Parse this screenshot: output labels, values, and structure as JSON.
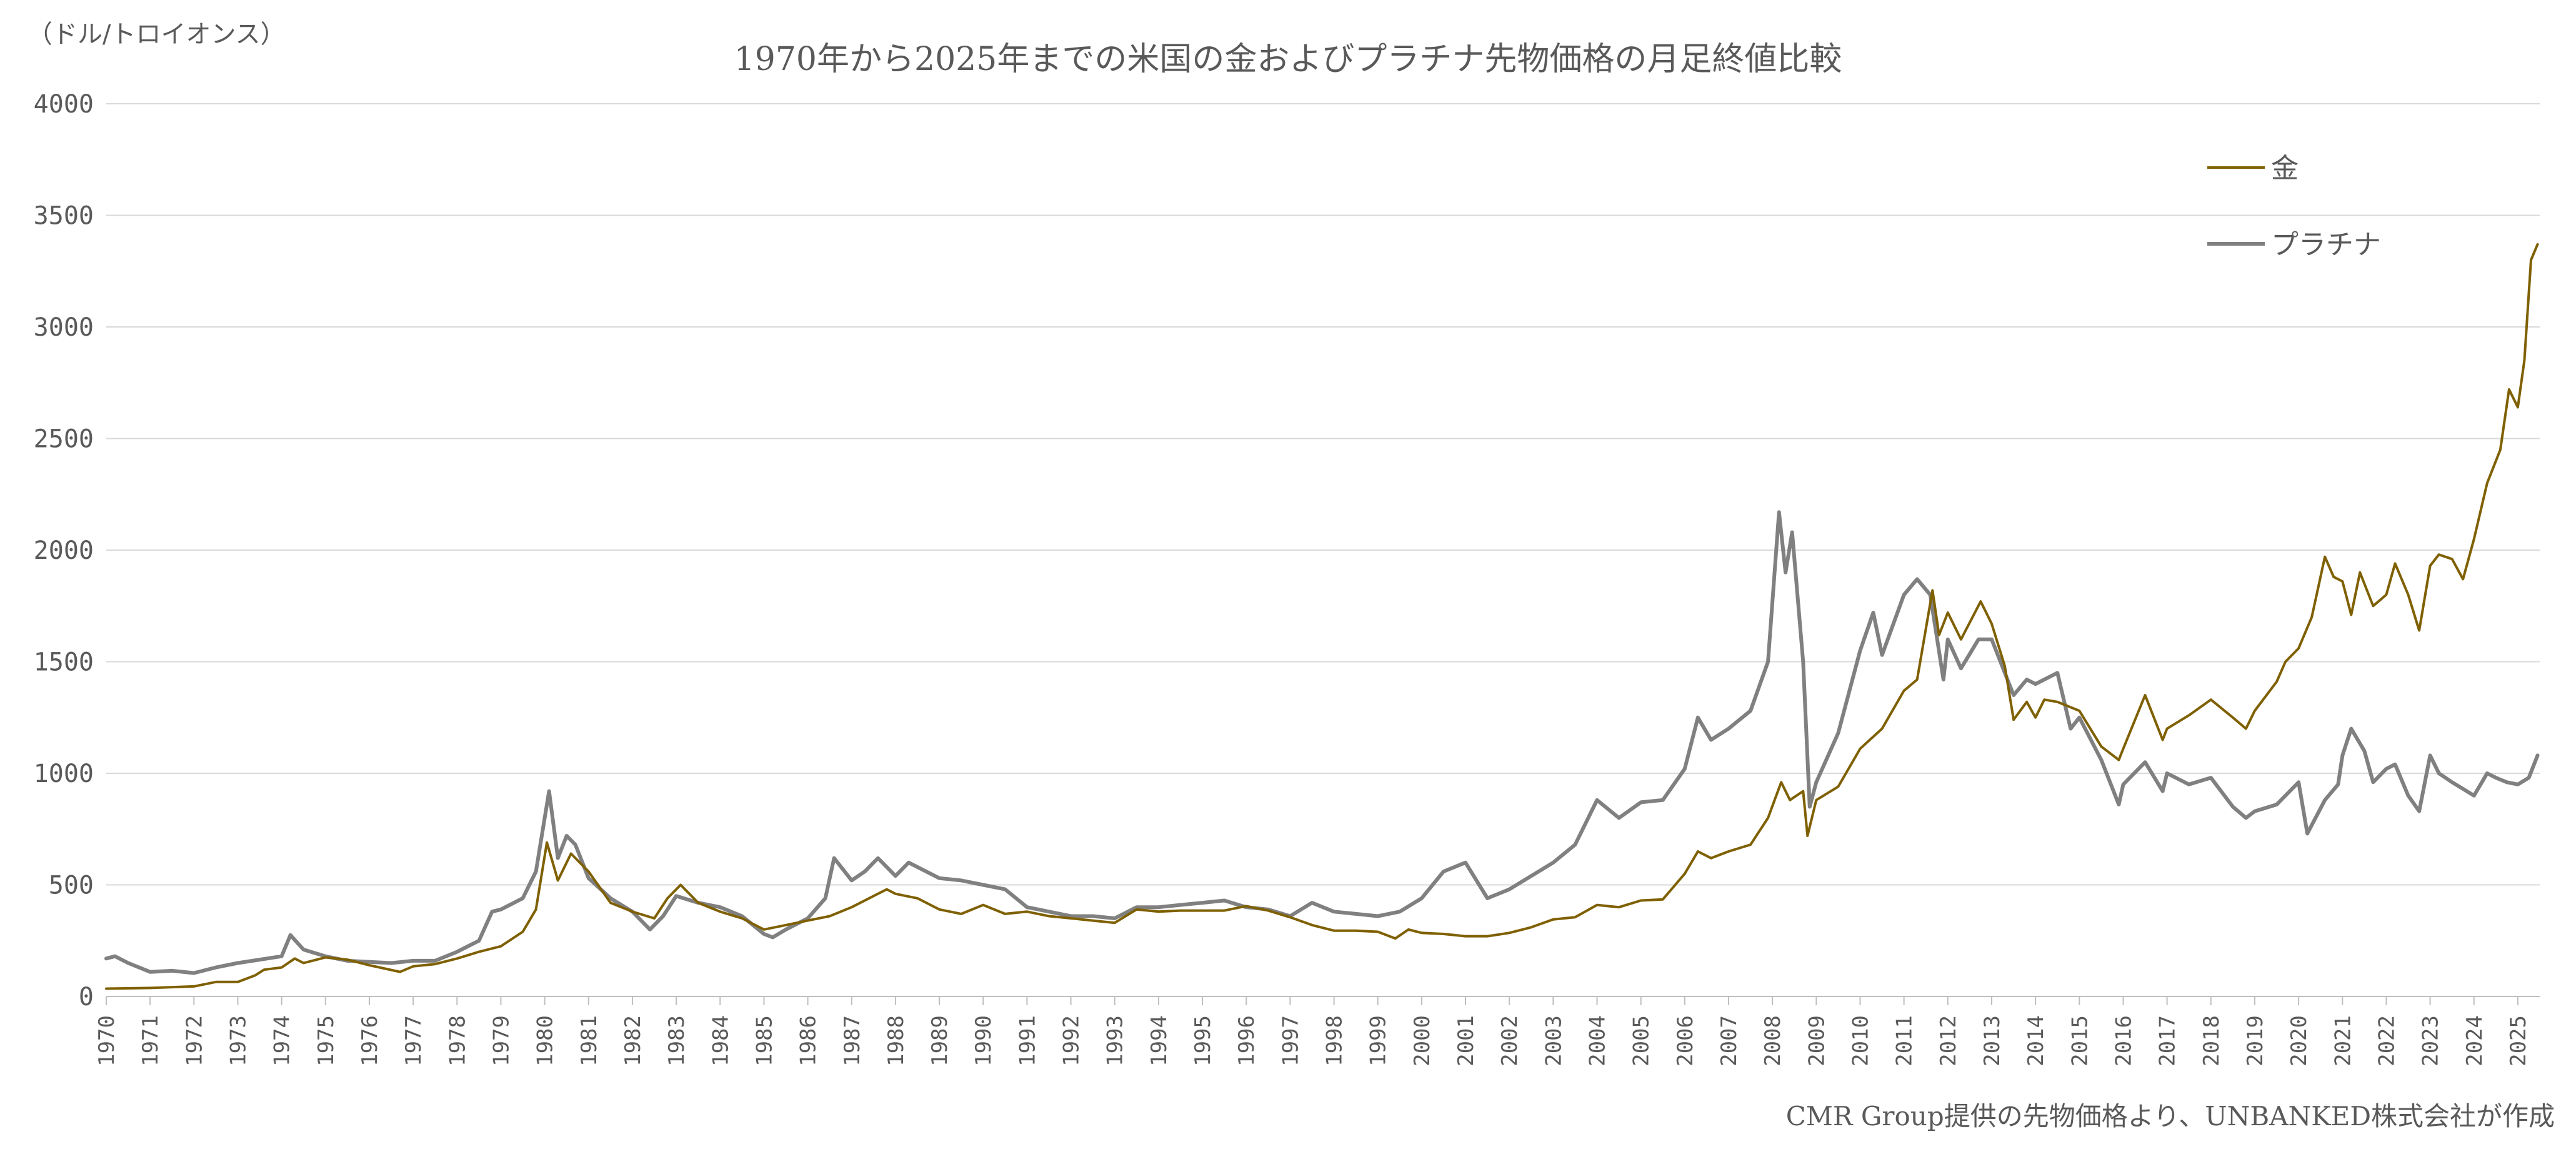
{
  "chart_data": {
    "type": "line",
    "title": "1970年から2025年までの米国の金およびプラチナ先物価格の月足終値比較",
    "ylabel": "（ドル/トロイオンス）",
    "source": "CMR Group提供の先物価格より、UNBANKED株式会社が作成",
    "xlim": [
      1970,
      2025.5
    ],
    "ylim": [
      0,
      4000
    ],
    "y_ticks": [
      "0",
      "500",
      "1000",
      "1500",
      "2000",
      "2500",
      "3000",
      "3500",
      "4000"
    ],
    "y_tick_values": [
      0,
      500,
      1000,
      1500,
      2000,
      2500,
      3000,
      3500,
      4000
    ],
    "x_ticks": [
      "1970",
      "1971",
      "1972",
      "1973",
      "1974",
      "1975",
      "1976",
      "1977",
      "1978",
      "1979",
      "1980",
      "1981",
      "1982",
      "1983",
      "1984",
      "1985",
      "1986",
      "1987",
      "1988",
      "1989",
      "1990",
      "1991",
      "1992",
      "1993",
      "1994",
      "1995",
      "1996",
      "1997",
      "1998",
      "1999",
      "2000",
      "2001",
      "2002",
      "2003",
      "2004",
      "2005",
      "2006",
      "2007",
      "2008",
      "2009",
      "2010",
      "2011",
      "2012",
      "2013",
      "2014",
      "2015",
      "2016",
      "2017",
      "2018",
      "2019",
      "2020",
      "2021",
      "2022",
      "2023",
      "2024",
      "2025"
    ],
    "grid": true,
    "legend_position": "top-right",
    "series": [
      {
        "name": "金",
        "color": "#7f6000",
        "points": [
          [
            1970,
            35
          ],
          [
            1971,
            38
          ],
          [
            1972,
            45
          ],
          [
            1972.5,
            65
          ],
          [
            1973,
            65
          ],
          [
            1973.4,
            95
          ],
          [
            1973.6,
            120
          ],
          [
            1974,
            130
          ],
          [
            1974.3,
            170
          ],
          [
            1974.5,
            150
          ],
          [
            1975,
            175
          ],
          [
            1975.5,
            165
          ],
          [
            1976,
            140
          ],
          [
            1976.7,
            110
          ],
          [
            1977,
            135
          ],
          [
            1977.5,
            145
          ],
          [
            1978,
            170
          ],
          [
            1978.5,
            200
          ],
          [
            1979,
            225
          ],
          [
            1979.5,
            290
          ],
          [
            1979.8,
            390
          ],
          [
            1980.05,
            690
          ],
          [
            1980.3,
            520
          ],
          [
            1980.6,
            640
          ],
          [
            1981,
            560
          ],
          [
            1981.5,
            420
          ],
          [
            1982,
            380
          ],
          [
            1982.5,
            350
          ],
          [
            1982.8,
            440
          ],
          [
            1983.1,
            500
          ],
          [
            1983.5,
            420
          ],
          [
            1984,
            380
          ],
          [
            1984.5,
            350
          ],
          [
            1985,
            300
          ],
          [
            1985.5,
            320
          ],
          [
            1986,
            340
          ],
          [
            1986.5,
            360
          ],
          [
            1987,
            400
          ],
          [
            1987.8,
            480
          ],
          [
            1988,
            460
          ],
          [
            1988.5,
            440
          ],
          [
            1989,
            390
          ],
          [
            1989.5,
            370
          ],
          [
            1990,
            410
          ],
          [
            1990.5,
            370
          ],
          [
            1991,
            380
          ],
          [
            1991.5,
            360
          ],
          [
            1992,
            350
          ],
          [
            1992.5,
            340
          ],
          [
            1993,
            330
          ],
          [
            1993.5,
            390
          ],
          [
            1994,
            380
          ],
          [
            1994.5,
            385
          ],
          [
            1995,
            385
          ],
          [
            1995.5,
            385
          ],
          [
            1996,
            405
          ],
          [
            1996.5,
            385
          ],
          [
            1997,
            355
          ],
          [
            1997.5,
            320
          ],
          [
            1998,
            295
          ],
          [
            1998.5,
            295
          ],
          [
            1999,
            290
          ],
          [
            1999.4,
            260
          ],
          [
            1999.7,
            300
          ],
          [
            2000,
            285
          ],
          [
            2000.5,
            280
          ],
          [
            2001,
            270
          ],
          [
            2001.5,
            270
          ],
          [
            2002,
            285
          ],
          [
            2002.5,
            310
          ],
          [
            2003,
            345
          ],
          [
            2003.5,
            355
          ],
          [
            2004,
            410
          ],
          [
            2004.5,
            400
          ],
          [
            2005,
            430
          ],
          [
            2005.5,
            435
          ],
          [
            2006,
            550
          ],
          [
            2006.3,
            650
          ],
          [
            2006.6,
            620
          ],
          [
            2007,
            650
          ],
          [
            2007.5,
            680
          ],
          [
            2007.9,
            800
          ],
          [
            2008.2,
            960
          ],
          [
            2008.4,
            880
          ],
          [
            2008.7,
            920
          ],
          [
            2008.8,
            720
          ],
          [
            2009,
            880
          ],
          [
            2009.5,
            940
          ],
          [
            2010,
            1110
          ],
          [
            2010.5,
            1200
          ],
          [
            2011,
            1370
          ],
          [
            2011.3,
            1420
          ],
          [
            2011.65,
            1820
          ],
          [
            2011.8,
            1620
          ],
          [
            2012,
            1720
          ],
          [
            2012.3,
            1600
          ],
          [
            2012.75,
            1770
          ],
          [
            2013,
            1670
          ],
          [
            2013.3,
            1480
          ],
          [
            2013.5,
            1240
          ],
          [
            2013.8,
            1320
          ],
          [
            2014,
            1250
          ],
          [
            2014.2,
            1330
          ],
          [
            2014.5,
            1320
          ],
          [
            2015,
            1280
          ],
          [
            2015.5,
            1120
          ],
          [
            2015.9,
            1060
          ],
          [
            2016,
            1110
          ],
          [
            2016.5,
            1350
          ],
          [
            2016.9,
            1150
          ],
          [
            2017,
            1200
          ],
          [
            2017.5,
            1260
          ],
          [
            2018,
            1330
          ],
          [
            2018.5,
            1250
          ],
          [
            2018.8,
            1200
          ],
          [
            2019,
            1280
          ],
          [
            2019.5,
            1410
          ],
          [
            2019.7,
            1500
          ],
          [
            2020,
            1560
          ],
          [
            2020.3,
            1700
          ],
          [
            2020.6,
            1970
          ],
          [
            2020.8,
            1880
          ],
          [
            2021,
            1860
          ],
          [
            2021.2,
            1710
          ],
          [
            2021.4,
            1900
          ],
          [
            2021.7,
            1750
          ],
          [
            2022,
            1800
          ],
          [
            2022.2,
            1940
          ],
          [
            2022.5,
            1800
          ],
          [
            2022.75,
            1640
          ],
          [
            2023,
            1930
          ],
          [
            2023.2,
            1980
          ],
          [
            2023.5,
            1960
          ],
          [
            2023.75,
            1870
          ],
          [
            2024,
            2050
          ],
          [
            2024.3,
            2300
          ],
          [
            2024.6,
            2450
          ],
          [
            2024.8,
            2720
          ],
          [
            2025,
            2640
          ],
          [
            2025.15,
            2850
          ],
          [
            2025.3,
            3300
          ],
          [
            2025.45,
            3370
          ]
        ]
      },
      {
        "name": "プラチナ",
        "color": "#808080",
        "points": [
          [
            1970,
            170
          ],
          [
            1970.2,
            180
          ],
          [
            1970.5,
            150
          ],
          [
            1971,
            110
          ],
          [
            1971.5,
            115
          ],
          [
            1972,
            105
          ],
          [
            1972.5,
            130
          ],
          [
            1973,
            150
          ],
          [
            1973.5,
            165
          ],
          [
            1974,
            180
          ],
          [
            1974.2,
            275
          ],
          [
            1974.5,
            210
          ],
          [
            1975,
            180
          ],
          [
            1975.5,
            160
          ],
          [
            1976,
            155
          ],
          [
            1976.5,
            150
          ],
          [
            1977,
            160
          ],
          [
            1977.5,
            160
          ],
          [
            1978,
            200
          ],
          [
            1978.5,
            250
          ],
          [
            1978.8,
            380
          ],
          [
            1979,
            390
          ],
          [
            1979.5,
            440
          ],
          [
            1979.8,
            560
          ],
          [
            1980.1,
            920
          ],
          [
            1980.3,
            620
          ],
          [
            1980.5,
            720
          ],
          [
            1980.7,
            680
          ],
          [
            1981,
            530
          ],
          [
            1981.5,
            440
          ],
          [
            1982,
            380
          ],
          [
            1982.4,
            300
          ],
          [
            1982.7,
            360
          ],
          [
            1983,
            450
          ],
          [
            1983.5,
            420
          ],
          [
            1984,
            400
          ],
          [
            1984.5,
            360
          ],
          [
            1985,
            280
          ],
          [
            1985.2,
            265
          ],
          [
            1985.5,
            300
          ],
          [
            1986,
            350
          ],
          [
            1986.4,
            440
          ],
          [
            1986.6,
            620
          ],
          [
            1987,
            520
          ],
          [
            1987.3,
            560
          ],
          [
            1987.6,
            620
          ],
          [
            1988,
            540
          ],
          [
            1988.3,
            600
          ],
          [
            1988.7,
            560
          ],
          [
            1989,
            530
          ],
          [
            1989.5,
            520
          ],
          [
            1990,
            500
          ],
          [
            1990.5,
            480
          ],
          [
            1991,
            400
          ],
          [
            1991.5,
            380
          ],
          [
            1992,
            360
          ],
          [
            1992.5,
            360
          ],
          [
            1993,
            350
          ],
          [
            1993.5,
            400
          ],
          [
            1994,
            400
          ],
          [
            1994.5,
            410
          ],
          [
            1995,
            420
          ],
          [
            1995.5,
            430
          ],
          [
            1996,
            400
          ],
          [
            1996.5,
            390
          ],
          [
            1997,
            360
          ],
          [
            1997.5,
            420
          ],
          [
            1998,
            380
          ],
          [
            1998.5,
            370
          ],
          [
            1999,
            360
          ],
          [
            1999.5,
            380
          ],
          [
            2000,
            440
          ],
          [
            2000.5,
            560
          ],
          [
            2001,
            600
          ],
          [
            2001.5,
            440
          ],
          [
            2002,
            480
          ],
          [
            2002.5,
            540
          ],
          [
            2003,
            600
          ],
          [
            2003.5,
            680
          ],
          [
            2004,
            880
          ],
          [
            2004.5,
            800
          ],
          [
            2005,
            870
          ],
          [
            2005.5,
            880
          ],
          [
            2006,
            1020
          ],
          [
            2006.3,
            1250
          ],
          [
            2006.6,
            1150
          ],
          [
            2007,
            1200
          ],
          [
            2007.5,
            1280
          ],
          [
            2007.9,
            1500
          ],
          [
            2008.15,
            2170
          ],
          [
            2008.3,
            1900
          ],
          [
            2008.45,
            2080
          ],
          [
            2008.7,
            1500
          ],
          [
            2008.85,
            850
          ],
          [
            2009,
            960
          ],
          [
            2009.5,
            1180
          ],
          [
            2010,
            1550
          ],
          [
            2010.3,
            1720
          ],
          [
            2010.5,
            1530
          ],
          [
            2011,
            1800
          ],
          [
            2011.3,
            1870
          ],
          [
            2011.6,
            1800
          ],
          [
            2011.9,
            1420
          ],
          [
            2012,
            1600
          ],
          [
            2012.3,
            1470
          ],
          [
            2012.7,
            1600
          ],
          [
            2013,
            1600
          ],
          [
            2013.3,
            1450
          ],
          [
            2013.5,
            1350
          ],
          [
            2013.8,
            1420
          ],
          [
            2014,
            1400
          ],
          [
            2014.5,
            1450
          ],
          [
            2014.8,
            1200
          ],
          [
            2015,
            1250
          ],
          [
            2015.5,
            1060
          ],
          [
            2015.9,
            860
          ],
          [
            2016,
            950
          ],
          [
            2016.5,
            1050
          ],
          [
            2016.9,
            920
          ],
          [
            2017,
            1000
          ],
          [
            2017.5,
            950
          ],
          [
            2018,
            980
          ],
          [
            2018.5,
            850
          ],
          [
            2018.8,
            800
          ],
          [
            2019,
            830
          ],
          [
            2019.5,
            860
          ],
          [
            2020,
            960
          ],
          [
            2020.2,
            730
          ],
          [
            2020.6,
            880
          ],
          [
            2020.9,
            950
          ],
          [
            2021,
            1080
          ],
          [
            2021.2,
            1200
          ],
          [
            2021.5,
            1100
          ],
          [
            2021.7,
            960
          ],
          [
            2022,
            1020
          ],
          [
            2022.2,
            1040
          ],
          [
            2022.5,
            900
          ],
          [
            2022.75,
            830
          ],
          [
            2023,
            1080
          ],
          [
            2023.2,
            1000
          ],
          [
            2023.5,
            960
          ],
          [
            2024,
            900
          ],
          [
            2024.3,
            1000
          ],
          [
            2024.5,
            980
          ],
          [
            2024.75,
            960
          ],
          [
            2025,
            950
          ],
          [
            2025.25,
            980
          ],
          [
            2025.45,
            1080
          ]
        ]
      }
    ]
  }
}
